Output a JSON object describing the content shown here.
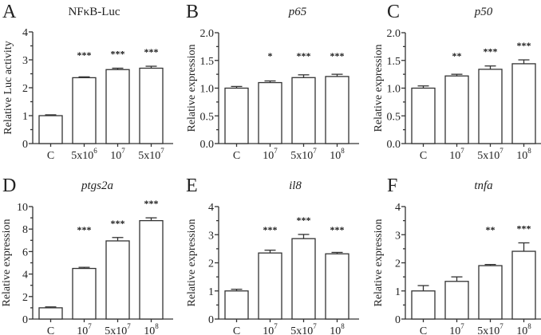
{
  "chart_data": [
    {
      "type": "bar",
      "panel": "A",
      "title": "NFκB-Luc",
      "title_italic": false,
      "ylabel": "Relative Luc activity",
      "ylim": [
        0,
        4
      ],
      "yticks": [
        0,
        1,
        2,
        3,
        4
      ],
      "ytick_labels": [
        "0",
        "1",
        "2",
        "3",
        "4"
      ],
      "categories": [
        {
          "base": "C",
          "exp": ""
        },
        {
          "base": "5x10",
          "exp": "6"
        },
        {
          "base": "10",
          "exp": "7"
        },
        {
          "base": "5x10",
          "exp": "7"
        }
      ],
      "values": [
        1.0,
        2.36,
        2.65,
        2.7
      ],
      "errors": [
        0.03,
        0.03,
        0.05,
        0.07
      ],
      "significance": [
        "",
        "***",
        "***",
        "***"
      ]
    },
    {
      "type": "bar",
      "panel": "B",
      "title": "p65",
      "title_italic": true,
      "ylabel": "Relative expression",
      "ylim": [
        0,
        2.0
      ],
      "yticks": [
        0,
        0.5,
        1.0,
        1.5,
        2.0
      ],
      "ytick_labels": [
        "0.0",
        "0.5",
        "1.0",
        "1.5",
        "2.0"
      ],
      "categories": [
        {
          "base": "C",
          "exp": ""
        },
        {
          "base": "10",
          "exp": "7"
        },
        {
          "base": "5x10",
          "exp": "7"
        },
        {
          "base": "10",
          "exp": "8"
        }
      ],
      "values": [
        1.0,
        1.1,
        1.19,
        1.21
      ],
      "errors": [
        0.03,
        0.03,
        0.05,
        0.04
      ],
      "significance": [
        "",
        "*",
        "***",
        "***"
      ]
    },
    {
      "type": "bar",
      "panel": "C",
      "title": "p50",
      "title_italic": true,
      "ylabel": "Relative expression",
      "ylim": [
        0,
        2.0
      ],
      "yticks": [
        0,
        0.5,
        1.0,
        1.5,
        2.0
      ],
      "ytick_labels": [
        "0.0",
        "0.5",
        "1.0",
        "1.5",
        "2.0"
      ],
      "categories": [
        {
          "base": "C",
          "exp": ""
        },
        {
          "base": "10",
          "exp": "7"
        },
        {
          "base": "5x10",
          "exp": "7"
        },
        {
          "base": "10",
          "exp": "8"
        }
      ],
      "values": [
        1.0,
        1.22,
        1.34,
        1.44
      ],
      "errors": [
        0.04,
        0.03,
        0.06,
        0.07
      ],
      "significance": [
        "",
        "**",
        "***",
        "***"
      ]
    },
    {
      "type": "bar",
      "panel": "D",
      "title": "ptgs2a",
      "title_italic": true,
      "ylabel": "Relative expression",
      "ylim": [
        0,
        10
      ],
      "yticks": [
        0,
        2,
        4,
        6,
        8,
        10
      ],
      "ytick_labels": [
        "0",
        "2",
        "4",
        "6",
        "8",
        "10"
      ],
      "categories": [
        {
          "base": "C",
          "exp": ""
        },
        {
          "base": "10",
          "exp": "7"
        },
        {
          "base": "5x10",
          "exp": "7"
        },
        {
          "base": "10",
          "exp": "8"
        }
      ],
      "values": [
        1.0,
        4.5,
        6.95,
        8.75
      ],
      "errors": [
        0.08,
        0.1,
        0.3,
        0.25
      ],
      "significance": [
        "",
        "***",
        "***",
        "***"
      ]
    },
    {
      "type": "bar",
      "panel": "E",
      "title": "il8",
      "title_italic": true,
      "ylabel": "Relative expression",
      "ylim": [
        0,
        4
      ],
      "yticks": [
        0,
        1,
        2,
        3,
        4
      ],
      "ytick_labels": [
        "0",
        "1",
        "2",
        "3",
        "4"
      ],
      "categories": [
        {
          "base": "C",
          "exp": ""
        },
        {
          "base": "10",
          "exp": "7"
        },
        {
          "base": "5x10",
          "exp": "7"
        },
        {
          "base": "10",
          "exp": "8"
        }
      ],
      "values": [
        1.0,
        2.35,
        2.86,
        2.32
      ],
      "errors": [
        0.06,
        0.1,
        0.15,
        0.05
      ],
      "significance": [
        "",
        "***",
        "***",
        "***"
      ]
    },
    {
      "type": "bar",
      "panel": "F",
      "title": "tnfa",
      "title_italic": true,
      "ylabel": "Relative expression",
      "ylim": [
        0,
        4
      ],
      "yticks": [
        0,
        1,
        2,
        3,
        4
      ],
      "ytick_labels": [
        "0",
        "1",
        "2",
        "3",
        "4"
      ],
      "categories": [
        {
          "base": "C",
          "exp": ""
        },
        {
          "base": "10",
          "exp": "7"
        },
        {
          "base": "5x10",
          "exp": "7"
        },
        {
          "base": "10",
          "exp": "8"
        }
      ],
      "values": [
        1.0,
        1.34,
        1.9,
        2.41
      ],
      "errors": [
        0.19,
        0.16,
        0.04,
        0.3
      ],
      "significance": [
        "",
        "",
        "**",
        "***"
      ]
    }
  ]
}
